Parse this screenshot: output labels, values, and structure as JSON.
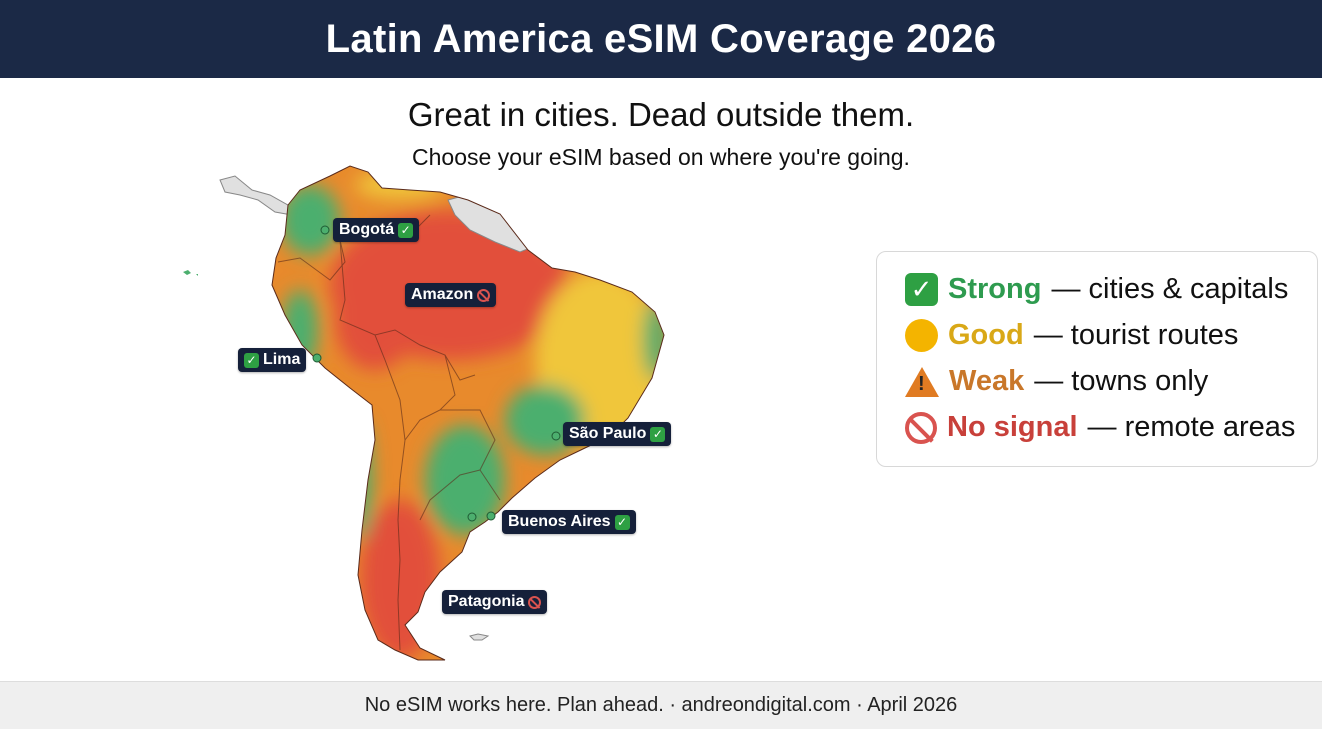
{
  "header": {
    "title": "Latin America eSIM Coverage 2026"
  },
  "headline": "Great in cities. Dead outside them.",
  "subheadline": "Choose your eSIM based on where you're going.",
  "map": {
    "labels": [
      {
        "name": "Bogotá",
        "status": "strong",
        "icon": "check-icon"
      },
      {
        "name": "Amazon",
        "status": "no-signal",
        "icon": "prohibited-icon"
      },
      {
        "name": "Lima",
        "status": "strong",
        "icon": "check-icon"
      },
      {
        "name": "São Paulo",
        "status": "strong",
        "icon": "check-icon"
      },
      {
        "name": "Buenos Aires",
        "status": "strong",
        "icon": "check-icon"
      },
      {
        "name": "Patagonia",
        "status": "no-signal",
        "icon": "prohibited-icon"
      }
    ],
    "colors": {
      "strong": "#4caf6e",
      "good": "#f0c63a",
      "weak": "#e88a2c",
      "no_signal": "#e2503a",
      "no_data": "#e0e0e0"
    }
  },
  "legend": {
    "items": [
      {
        "label": "Strong",
        "desc": "— cities & capitals",
        "icon": "check-icon",
        "color": "#2e9b4f"
      },
      {
        "label": "Good",
        "desc": "— tourist routes",
        "icon": "yellow-circle-icon",
        "color": "#d9a817"
      },
      {
        "label": "Weak",
        "desc": "— towns only",
        "icon": "warning-icon",
        "color": "#c9772a"
      },
      {
        "label": "No signal",
        "desc": "— remote areas",
        "icon": "prohibited-icon",
        "color": "#c8403a"
      }
    ]
  },
  "footer": {
    "text": "No eSIM works here. Plan ahead. · andreondigital.com · April 2026"
  }
}
